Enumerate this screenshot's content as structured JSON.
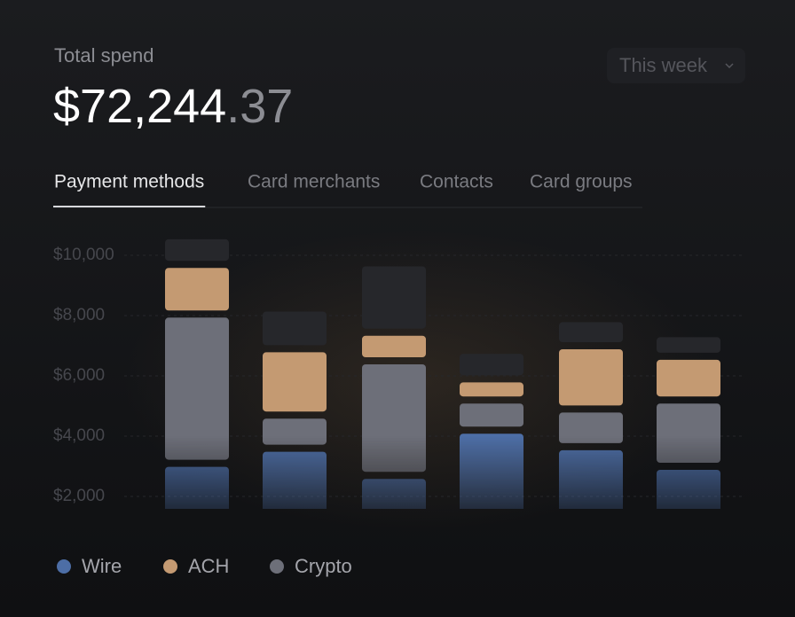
{
  "header": {
    "label": "Total spend",
    "amount_whole": "$72,244",
    "amount_fraction": ".37",
    "period": "This week"
  },
  "tabs": [
    "Payment methods",
    "Card merchants",
    "Contacts",
    "Card groups"
  ],
  "chart_data": {
    "type": "bar",
    "stacked": true,
    "series": [
      {
        "name": "Wire",
        "color": "#4d6ea6",
        "values": [
          3100,
          3600,
          2700,
          4200,
          3650,
          3000
        ]
      },
      {
        "name": "ACH",
        "color": "#c49a72",
        "values": [
          1650,
          2200,
          950,
          700,
          2100,
          1450
        ]
      },
      {
        "name": "Crypto",
        "color": "#6d6f79",
        "values": [
          4950,
          1100,
          3800,
          1000,
          1250,
          2200
        ]
      },
      {
        "color": "#26272b",
        "values": [
          950,
          1350,
          2300,
          950,
          900,
          750
        ]
      }
    ],
    "ylim": [
      0,
      11000
    ],
    "yticks": [
      {
        "value": 2000,
        "label": "$2,000"
      },
      {
        "value": 4000,
        "label": "$4,000"
      },
      {
        "value": 6000,
        "label": "$6,000"
      },
      {
        "value": 8000,
        "label": "$8,000"
      },
      {
        "value": 10000,
        "label": "$10,000"
      }
    ],
    "grid": true
  }
}
